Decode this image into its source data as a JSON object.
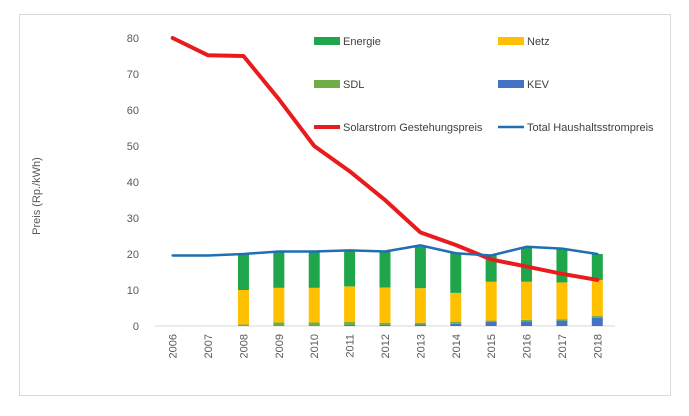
{
  "chart_data": {
    "type": "bar",
    "ylabel": "Preis (Rp./kWh)",
    "ylim": [
      0,
      80
    ],
    "yticks": [
      0,
      10,
      20,
      30,
      40,
      50,
      60,
      70,
      80
    ],
    "grid": false,
    "legend_position": "top-right",
    "categories": [
      "2006",
      "2007",
      "2008",
      "2009",
      "2010",
      "2011",
      "2012",
      "2013",
      "2014",
      "2015",
      "2016",
      "2017",
      "2018"
    ],
    "stacked_series": [
      {
        "name": "KEV",
        "color": "#4472c4",
        "values": [
          0,
          0,
          0.0,
          0.2,
          0.2,
          0.3,
          0.3,
          0.4,
          0.6,
          1.1,
          1.3,
          1.5,
          2.3
        ]
      },
      {
        "name": "SDL",
        "color": "#70ad47",
        "values": [
          0,
          0,
          0.4,
          0.8,
          0.8,
          0.8,
          0.6,
          0.5,
          0.6,
          0.4,
          0.4,
          0.4,
          0.5
        ]
      },
      {
        "name": "Netz",
        "color": "#ffc000",
        "values": [
          0,
          0,
          9.6,
          9.6,
          9.6,
          9.9,
          9.8,
          9.6,
          8.0,
          10.8,
          10.6,
          10.2,
          10.0
        ]
      },
      {
        "name": "Energie",
        "color": "#1fa64a",
        "values": [
          0,
          0,
          9.9,
          10.0,
          10.1,
          10.0,
          10.0,
          11.5,
          11.0,
          7.3,
          9.7,
          9.4,
          7.2
        ]
      }
    ],
    "line_series": [
      {
        "name": "Solarstrom Gestehungspreis",
        "color": "#e81c1c",
        "width": 4,
        "values": [
          80,
          75.2,
          75,
          63,
          50,
          43,
          35,
          26,
          22.5,
          18.5,
          16.5,
          14.5,
          12.8
        ]
      },
      {
        "name": "Total Haushaltsstrompreis",
        "color": "#1f6fb2",
        "width": 2.5,
        "values": [
          19.6,
          19.6,
          20.0,
          20.7,
          20.7,
          21.0,
          20.7,
          22.4,
          20.2,
          19.6,
          22.0,
          21.5,
          20.0
        ]
      }
    ],
    "legend": [
      {
        "name": "Energie",
        "color": "#1fa64a",
        "kind": "box"
      },
      {
        "name": "Netz",
        "color": "#ffc000",
        "kind": "box"
      },
      {
        "name": "SDL",
        "color": "#70ad47",
        "kind": "box"
      },
      {
        "name": "KEV",
        "color": "#4472c4",
        "kind": "box"
      },
      {
        "name": "Solarstrom Gestehungspreis",
        "color": "#e81c1c",
        "kind": "line"
      },
      {
        "name": "Total Haushaltsstrompreis",
        "color": "#1f6fb2",
        "kind": "line"
      }
    ]
  }
}
